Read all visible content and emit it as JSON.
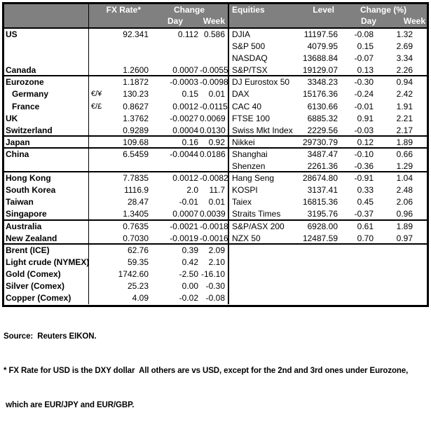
{
  "colors": {
    "header_bg": "#808080",
    "header_text": "#ffffff",
    "border": "#000000"
  },
  "table": {
    "header": {
      "fx_rate": "FX Rate*",
      "change": "Change",
      "day": "Day",
      "week": "Week",
      "equities": "Equities",
      "level": "Level",
      "change_pct": "Change (%)",
      "eq_day": "Day",
      "eq_week": "Week"
    },
    "rows": [
      {
        "fx_label": "US",
        "fx_sym": "",
        "fx_rate": "92.341",
        "fx_day": "0.112",
        "fx_week": "0.586",
        "eq_label": "DJIA",
        "eq_level": "11197.56",
        "eq_day": "-0.08",
        "eq_week": "1.32"
      },
      {
        "fx_label": "",
        "fx_sym": "",
        "fx_rate": "",
        "fx_day": "",
        "fx_week": "",
        "eq_label": "S&P 500",
        "eq_level": "4079.95",
        "eq_day": "0.15",
        "eq_week": "2.69"
      },
      {
        "fx_label": "",
        "fx_sym": "",
        "fx_rate": "",
        "fx_day": "",
        "fx_week": "",
        "eq_label": "NASDAQ",
        "eq_level": "13688.84",
        "eq_day": "-0.07",
        "eq_week": "3.34"
      },
      {
        "fx_label": "Canada",
        "fx_sym": "",
        "fx_rate": "1.2600",
        "fx_day": "0.0007",
        "fx_week": "-0.0055",
        "eq_label": "S&P/TSX",
        "eq_level": "19129.07",
        "eq_day": "0.13",
        "eq_week": "2.26",
        "sep": true
      },
      {
        "fx_label": "Eurozone",
        "fx_sym": "",
        "fx_rate": "1.1872",
        "fx_day": "-0.0003",
        "fx_week": "-0.0098",
        "eq_label": "DJ Eurostox 50",
        "eq_level": "3348.23",
        "eq_day": "-0.30",
        "eq_week": "0.94"
      },
      {
        "fx_label": "Germany",
        "fx_sym": "€/¥",
        "fx_rate": "130.23",
        "fx_day": "0.15",
        "fx_week": "0.01",
        "eq_label": "DAX",
        "eq_level": "15176.36",
        "eq_day": "-0.24",
        "eq_week": "2.42",
        "indent": true
      },
      {
        "fx_label": "France",
        "fx_sym": "€/£",
        "fx_rate": "0.8627",
        "fx_day": "0.0012",
        "fx_week": "-0.0115",
        "eq_label": "CAC 40",
        "eq_level": "6130.66",
        "eq_day": "-0.01",
        "eq_week": "1.91",
        "indent": true
      },
      {
        "fx_label": "UK",
        "fx_sym": "",
        "fx_rate": "1.3762",
        "fx_day": "-0.0027",
        "fx_week": "0.0069",
        "eq_label": "FTSE 100",
        "eq_level": "6885.32",
        "eq_day": "0.91",
        "eq_week": "2.21"
      },
      {
        "fx_label": "Switzerland",
        "fx_sym": "",
        "fx_rate": "0.9289",
        "fx_day": "0.0004",
        "fx_week": "0.0130",
        "eq_label": "Swiss Mkt Index",
        "eq_level": "2229.56",
        "eq_day": "-0.03",
        "eq_week": "2.17",
        "sep": true
      },
      {
        "fx_label": "Japan",
        "fx_sym": "",
        "fx_rate": "109.68",
        "fx_day": "0.16",
        "fx_week": "0.92",
        "eq_label": "Nikkei",
        "eq_level": "29730.79",
        "eq_day": "0.12",
        "eq_week": "1.89",
        "sep": true
      },
      {
        "fx_label": "China",
        "fx_sym": "",
        "fx_rate": "6.5459",
        "fx_day": "-0.0044",
        "fx_week": "0.0186",
        "eq_label": "Shanghai",
        "eq_level": "3487.47",
        "eq_day": "-0.10",
        "eq_week": "0.66"
      },
      {
        "fx_label": "",
        "fx_sym": "",
        "fx_rate": "",
        "fx_day": "",
        "fx_week": "",
        "eq_label": "Shenzen",
        "eq_level": "2261.36",
        "eq_day": "-0.36",
        "eq_week": "1.29",
        "sep": true
      },
      {
        "fx_label": "Hong Kong",
        "fx_sym": "",
        "fx_rate": "7.7835",
        "fx_day": "0.0012",
        "fx_week": "-0.0082",
        "eq_label": "Hang Seng",
        "eq_level": "28674.80",
        "eq_day": "-0.91",
        "eq_week": "1.04"
      },
      {
        "fx_label": "South Korea",
        "fx_sym": "",
        "fx_rate": "1116.9",
        "fx_day": "2.0",
        "fx_week": "11.7",
        "eq_label": "KOSPI",
        "eq_level": "3137.41",
        "eq_day": "0.33",
        "eq_week": "2.48"
      },
      {
        "fx_label": "Taiwan",
        "fx_sym": "",
        "fx_rate": "28.47",
        "fx_day": "-0.01",
        "fx_week": "0.01",
        "eq_label": "Taiex",
        "eq_level": "16815.36",
        "eq_day": "0.45",
        "eq_week": "2.06"
      },
      {
        "fx_label": "Singapore",
        "fx_sym": "",
        "fx_rate": "1.3405",
        "fx_day": "0.0007",
        "fx_week": "0.0039",
        "eq_label": "Straits Times",
        "eq_level": "3195.76",
        "eq_day": "-0.37",
        "eq_week": "0.96",
        "sep": true
      },
      {
        "fx_label": "Australia",
        "fx_sym": "",
        "fx_rate": "0.7635",
        "fx_day": "-0.0021",
        "fx_week": "-0.0018",
        "eq_label": "S&P/ASX  200",
        "eq_level": "6928.00",
        "eq_day": "0.61",
        "eq_week": "1.89"
      },
      {
        "fx_label": "New Zealand",
        "fx_sym": "",
        "fx_rate": "0.7030",
        "fx_day": "-0.0019",
        "fx_week": "-0.0016",
        "eq_label": "NZX 50",
        "eq_level": "12487.59",
        "eq_day": "0.70",
        "eq_week": "0.97",
        "sep": true
      },
      {
        "fx_label": "Brent (ICE)",
        "fx_sym": "",
        "fx_rate": "62.76",
        "fx_day": "0.39",
        "fx_week": "2.09",
        "eq_label": "",
        "eq_level": "",
        "eq_day": "",
        "eq_week": ""
      },
      {
        "fx_label": "Light crude (NYMEX)",
        "fx_sym": "",
        "fx_rate": "59.35",
        "fx_day": "0.42",
        "fx_week": "2.10",
        "eq_label": "",
        "eq_level": "",
        "eq_day": "",
        "eq_week": ""
      },
      {
        "fx_label": "Gold (Comex)",
        "fx_sym": "",
        "fx_rate": "1742.60",
        "fx_day": "-2.50",
        "fx_week": "-16.10",
        "eq_label": "",
        "eq_level": "",
        "eq_day": "",
        "eq_week": ""
      },
      {
        "fx_label": "Silver (Comex)",
        "fx_sym": "",
        "fx_rate": "25.23",
        "fx_day": "0.00",
        "fx_week": "-0.30",
        "eq_label": "",
        "eq_level": "",
        "eq_day": "",
        "eq_week": ""
      },
      {
        "fx_label": "Copper (Comex)",
        "fx_sym": "",
        "fx_rate": "4.09",
        "fx_day": "-0.02",
        "fx_week": "-0.08",
        "eq_label": "",
        "eq_level": "",
        "eq_day": "",
        "eq_week": ""
      }
    ]
  },
  "footer": {
    "source": "Source:  Reuters EIKON.",
    "note_line1": "* FX Rate for USD is the DXY dollar  All others are vs USD, except for the 2nd and 3rd ones under Eurozone,",
    "note_line2": " which are EUR/JPY and EUR/GBP."
  }
}
